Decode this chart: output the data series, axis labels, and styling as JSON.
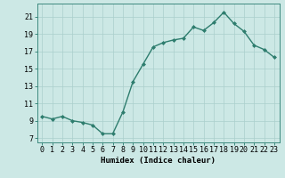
{
  "x": [
    0,
    1,
    2,
    3,
    4,
    5,
    6,
    7,
    8,
    9,
    10,
    11,
    12,
    13,
    14,
    15,
    16,
    17,
    18,
    19,
    20,
    21,
    22,
    23
  ],
  "y": [
    9.5,
    9.2,
    9.5,
    9.0,
    8.8,
    8.5,
    7.5,
    7.5,
    10.0,
    13.5,
    15.5,
    17.5,
    18.0,
    18.3,
    18.5,
    19.8,
    19.4,
    20.3,
    21.5,
    20.2,
    19.3,
    17.7,
    17.2,
    16.3
  ],
  "line_color": "#2e7d6e",
  "marker": "D",
  "marker_size": 2.0,
  "bg_color": "#cce8e5",
  "grid_color": "#aacfcc",
  "xlabel": "Humidex (Indice chaleur)",
  "xlim": [
    -0.5,
    23.5
  ],
  "ylim": [
    6.5,
    22.5
  ],
  "yticks": [
    7,
    9,
    11,
    13,
    15,
    17,
    19,
    21
  ],
  "xticks": [
    0,
    1,
    2,
    3,
    4,
    5,
    6,
    7,
    8,
    9,
    10,
    11,
    12,
    13,
    14,
    15,
    16,
    17,
    18,
    19,
    20,
    21,
    22,
    23
  ],
  "xlabel_fontsize": 6.5,
  "tick_fontsize": 6.0,
  "line_width": 1.0,
  "spine_color": "#3d8a7e"
}
